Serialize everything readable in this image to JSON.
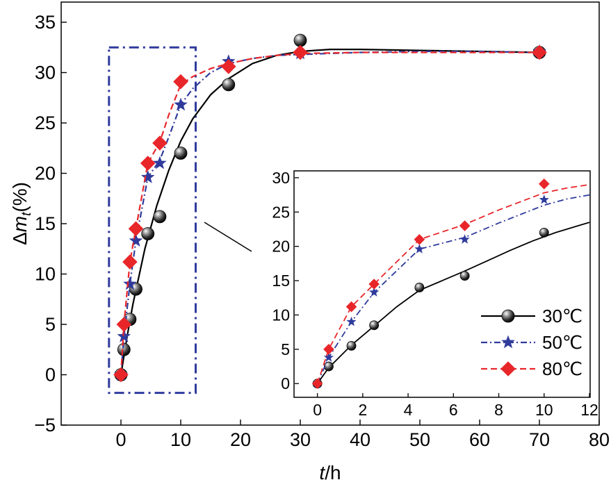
{
  "chart_data": [
    {
      "type": "line",
      "panel": "main",
      "xlabel": "t/h",
      "ylabel": "Δm_t(%)",
      "xlim": [
        -10,
        80
      ],
      "ylim": [
        -5,
        37
      ],
      "xticks": [
        0,
        10,
        20,
        30,
        40,
        50,
        60,
        70,
        80
      ],
      "yticks": [
        -5,
        0,
        5,
        10,
        15,
        20,
        25,
        30,
        35
      ],
      "series": [
        {
          "name": "30℃",
          "color": "#000000",
          "marker": "sphere",
          "line": "solid",
          "x": [
            0,
            0.5,
            1.5,
            2.5,
            4.5,
            6.5,
            10,
            18,
            30,
            70
          ],
          "y": [
            0,
            2.5,
            5.5,
            8.5,
            14,
            15.7,
            22,
            28.8,
            33.2,
            32
          ],
          "fit_x": [
            0,
            1,
            2,
            4,
            6,
            8,
            10,
            12,
            15,
            18,
            22,
            26,
            30,
            35,
            40,
            50,
            60,
            70
          ],
          "fit_y": [
            0,
            3.7,
            7.0,
            12.5,
            16.8,
            20.3,
            23.2,
            25.4,
            27.8,
            29.4,
            30.9,
            31.7,
            32.1,
            32.3,
            32.3,
            32.2,
            32.1,
            32.0
          ]
        },
        {
          "name": "50℃",
          "color": "#2f3b9c",
          "marker": "star",
          "line": "dashdot",
          "x": [
            0,
            0.5,
            1.5,
            2.5,
            4.5,
            6.5,
            10,
            18,
            30,
            70
          ],
          "y": [
            0,
            3.8,
            9,
            13.3,
            19.6,
            21,
            26.8,
            31.1,
            31.9,
            32.1
          ],
          "fit_x": [
            0,
            0.5,
            1.5,
            2.5,
            4.5,
            6.5,
            8,
            10,
            12,
            15,
            18,
            22,
            26,
            30,
            40,
            50,
            60,
            70
          ],
          "fit_y": [
            0,
            3.8,
            9,
            13.3,
            19.6,
            21.3,
            23.6,
            26.8,
            28.4,
            30.0,
            30.9,
            31.4,
            31.7,
            31.8,
            32.0,
            32.1,
            32.1,
            32.0
          ]
        },
        {
          "name": "80℃",
          "color": "#e8262a",
          "marker": "diamond",
          "line": "dash",
          "x": [
            0,
            0.5,
            1.5,
            2.5,
            4.5,
            6.5,
            10,
            18,
            30,
            70
          ],
          "y": [
            0,
            5,
            11.2,
            14.5,
            21,
            23,
            29.1,
            30.6,
            32,
            32
          ],
          "fit_x": [
            0,
            0.5,
            1.5,
            2.5,
            4.5,
            6.5,
            8,
            10,
            12,
            15,
            18,
            22,
            26,
            30,
            40,
            50,
            60,
            70
          ],
          "fit_y": [
            0,
            5,
            11.2,
            14.5,
            21,
            23.1,
            25.8,
            28.8,
            29.6,
            30.4,
            30.9,
            31.4,
            31.7,
            31.9,
            32.0,
            32.0,
            32.0,
            32.0
          ]
        }
      ]
    },
    {
      "type": "line",
      "panel": "inset",
      "xlim": [
        -1,
        12
      ],
      "ylim": [
        -2,
        31
      ],
      "xticks": [
        0,
        2,
        4,
        6,
        8,
        10,
        12
      ],
      "yticks": [
        0,
        5,
        10,
        15,
        20,
        25,
        30
      ],
      "legend": "bottom-right",
      "series": [
        {
          "name": "30℃",
          "color": "#000000",
          "marker": "sphere",
          "line": "solid",
          "x": [
            0,
            0.5,
            1.5,
            2.5,
            4.5,
            6.5,
            10
          ],
          "y": [
            0,
            2.5,
            5.5,
            8.5,
            14,
            15.7,
            22
          ],
          "fit_x": [
            0,
            0.5,
            1.5,
            2.5,
            3.5,
            4.5,
            5.5,
            6.5,
            7.5,
            8.5,
            9.5,
            10.5,
            11.5,
            12
          ],
          "fit_y": [
            0,
            2.3,
            5.6,
            8.4,
            11.2,
            13.6,
            15.0,
            16.4,
            17.9,
            19.4,
            20.8,
            22.0,
            23.0,
            23.5
          ]
        },
        {
          "name": "50℃",
          "color": "#2f3b9c",
          "marker": "star",
          "line": "dashdot",
          "x": [
            0,
            0.5,
            1.5,
            2.5,
            4.5,
            6.5,
            10
          ],
          "y": [
            0,
            3.8,
            9,
            13.3,
            19.6,
            21,
            26.8
          ],
          "fit_x": [
            0,
            0.5,
            1.5,
            2.5,
            4.5,
            6.5,
            8,
            10,
            11,
            12
          ],
          "fit_y": [
            0,
            3.8,
            9,
            13.3,
            19.6,
            21.3,
            23.4,
            26.0,
            26.9,
            27.5
          ]
        },
        {
          "name": "80℃",
          "color": "#e8262a",
          "marker": "diamond",
          "line": "dash",
          "x": [
            0,
            0.5,
            1.5,
            2.5,
            4.5,
            6.5,
            10
          ],
          "y": [
            0,
            5,
            11.2,
            14.5,
            21,
            23,
            29.1
          ],
          "fit_x": [
            0,
            0.5,
            1.5,
            2.5,
            4.5,
            6.5,
            8,
            10,
            11,
            12
          ],
          "fit_y": [
            0,
            5,
            11.2,
            14.5,
            21,
            23.2,
            25.3,
            27.8,
            28.5,
            29.0
          ]
        }
      ]
    }
  ]
}
